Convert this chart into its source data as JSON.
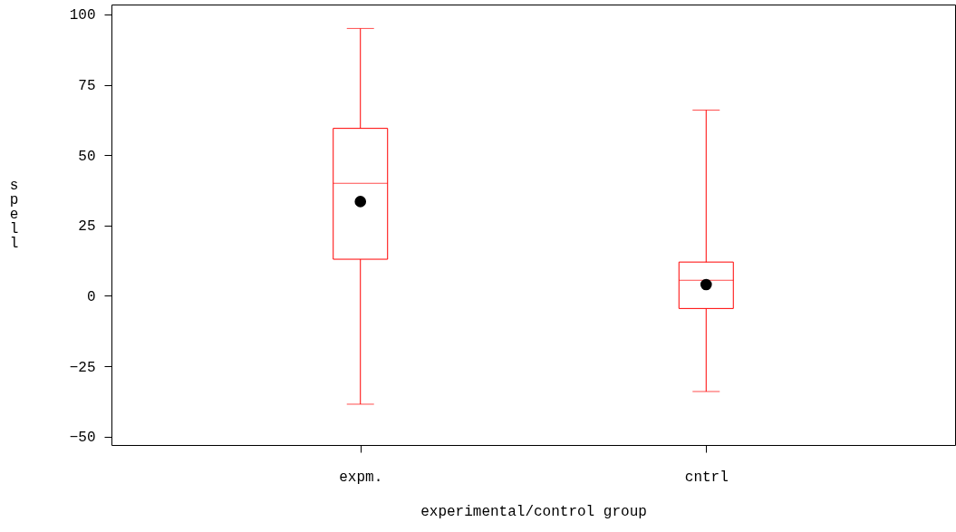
{
  "chart_data": {
    "type": "box",
    "xlabel": "experimental/control group",
    "ylabel": "spell",
    "categories": [
      "expm.",
      "cntrl"
    ],
    "ylim": [
      -53,
      103.5
    ],
    "yticks": [
      -50,
      -25,
      0,
      25,
      50,
      75,
      100
    ],
    "series": [
      {
        "color": "#ff0000",
        "boxes": [
          {
            "low": -38.5,
            "q1": 13,
            "median": 40,
            "q3": 59.5,
            "high": 95,
            "mean": 33.5
          },
          {
            "low": -34,
            "q1": -4.5,
            "median": 5.5,
            "q3": 12,
            "high": 66,
            "mean": 4
          }
        ]
      }
    ]
  }
}
